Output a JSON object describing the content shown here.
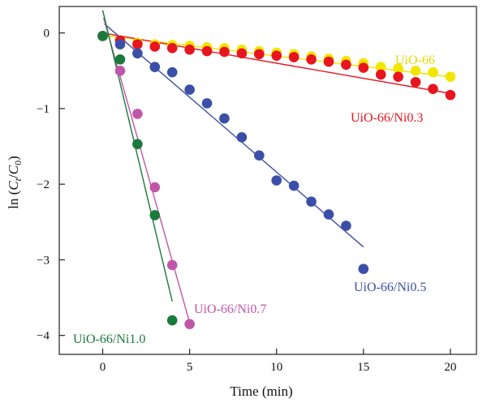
{
  "chart_data": {
    "type": "scatter",
    "title": "",
    "xlabel": "Time (min)",
    "ylabel_parts": [
      "ln (",
      "C",
      "t",
      "/",
      "C",
      "0",
      ")"
    ],
    "xlim": [
      -2.5,
      21.5
    ],
    "ylim": [
      -4.25,
      0.35
    ],
    "xticks": [
      0,
      5,
      10,
      15,
      20
    ],
    "yticks": [
      0,
      -1,
      -2,
      -3,
      -4
    ],
    "xtick_labels": [
      "0",
      "5",
      "10",
      "15",
      "20"
    ],
    "ytick_labels": [
      "0",
      "−1",
      "−2",
      "−3",
      "−4"
    ],
    "grid": false,
    "legend": "inline labels",
    "series": [
      {
        "name": "UiO-66",
        "color": "#f2e600",
        "x": [
          0,
          1,
          2,
          3,
          4,
          5,
          6,
          7,
          8,
          9,
          10,
          11,
          12,
          13,
          14,
          15,
          16,
          17,
          18,
          19,
          20
        ],
        "y": [
          -0.04,
          -0.1,
          -0.13,
          -0.15,
          -0.16,
          -0.17,
          -0.19,
          -0.2,
          -0.22,
          -0.24,
          -0.26,
          -0.28,
          -0.31,
          -0.34,
          -0.37,
          -0.4,
          -0.45,
          -0.47,
          -0.5,
          -0.52,
          -0.58
        ],
        "fit": [
          [
            0,
            -0.03
          ],
          [
            20,
            -0.58
          ]
        ]
      },
      {
        "name": "UiO-66/Ni0.3",
        "color": "#e8141e",
        "x": [
          0,
          1,
          2,
          3,
          4,
          5,
          6,
          7,
          8,
          9,
          10,
          11,
          12,
          13,
          14,
          15,
          16,
          17,
          18,
          19,
          20
        ],
        "y": [
          -0.04,
          -0.1,
          -0.15,
          -0.18,
          -0.2,
          -0.22,
          -0.24,
          -0.25,
          -0.27,
          -0.28,
          -0.3,
          -0.32,
          -0.35,
          -0.38,
          -0.42,
          -0.46,
          -0.55,
          -0.58,
          -0.65,
          -0.74,
          -0.82
        ],
        "fit": [
          [
            0,
            0.0
          ],
          [
            20,
            -0.8
          ]
        ]
      },
      {
        "name": "UiO-66/Ni0.5",
        "color": "#3b4fa8",
        "x": [
          0,
          1,
          2,
          3,
          4,
          5,
          6,
          7,
          8,
          9,
          10,
          11,
          12,
          13,
          14,
          15
        ],
        "y": [
          -0.04,
          -0.15,
          -0.27,
          -0.45,
          -0.52,
          -0.75,
          -0.93,
          -1.13,
          -1.38,
          -1.62,
          -1.95,
          -2.02,
          -2.23,
          -2.4,
          -2.55,
          -3.12
        ],
        "fit": [
          [
            0.1,
            0.12
          ],
          [
            15,
            -2.83
          ]
        ]
      },
      {
        "name": "UiO-66/Ni0.7",
        "color": "#c056a8",
        "x": [
          0,
          1,
          2,
          3,
          4,
          5
        ],
        "y": [
          -0.04,
          -0.5,
          -1.07,
          -2.04,
          -3.07,
          -3.85
        ],
        "fit": [
          [
            0.05,
            0.2
          ],
          [
            5,
            -3.83
          ]
        ]
      },
      {
        "name": "UiO-66/Ni1.0",
        "color": "#1a7a3a",
        "x": [
          0,
          1,
          2,
          3,
          4
        ],
        "y": [
          -0.04,
          -0.35,
          -1.47,
          -2.41,
          -3.8
        ],
        "fit": [
          [
            0,
            0.3
          ],
          [
            4,
            -3.55
          ]
        ]
      }
    ]
  },
  "labels": {
    "uio66": "UiO-66",
    "ni03": "UiO-66/Ni0.3",
    "ni05": "UiO-66/Ni0.5",
    "ni07": "UiO-66/Ni0.7",
    "ni10": "UiO-66/Ni1.0"
  }
}
